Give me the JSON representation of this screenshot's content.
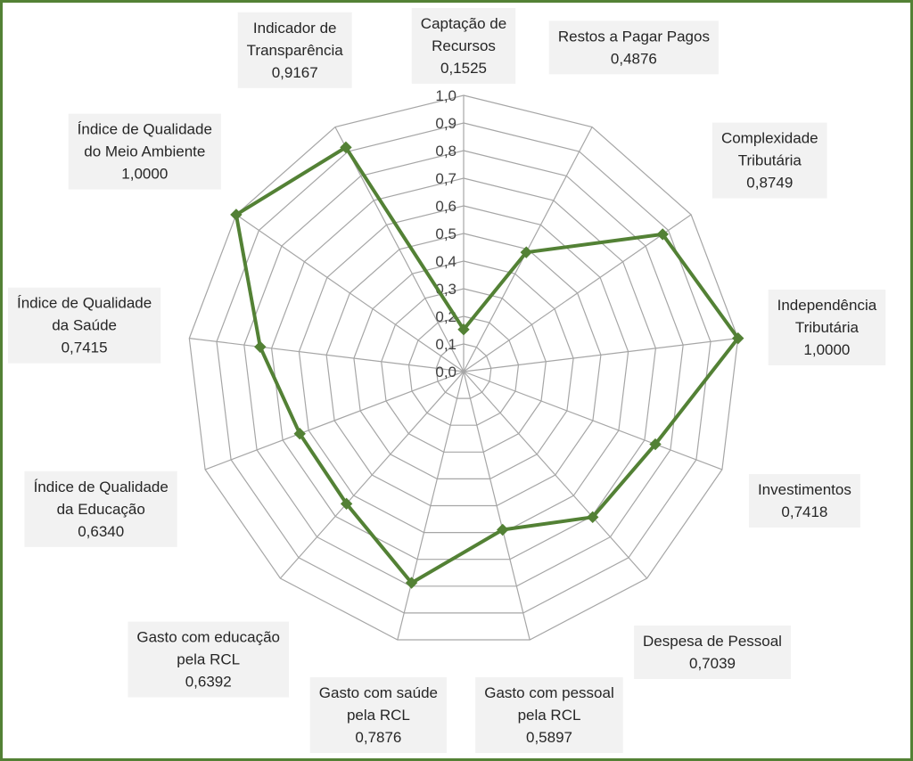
{
  "chart_data": {
    "type": "radar",
    "categories": [
      {
        "lines": [
          "Captação de",
          "Recursos"
        ],
        "value_label": "0,1525"
      },
      {
        "lines": [
          "Restos a Pagar Pagos"
        ],
        "value_label": "0,4876"
      },
      {
        "lines": [
          "Complexidade",
          "Tributária"
        ],
        "value_label": "0,8749"
      },
      {
        "lines": [
          "Independência",
          "Tributária"
        ],
        "value_label": "1,0000"
      },
      {
        "lines": [
          "Investimentos"
        ],
        "value_label": "0,7418"
      },
      {
        "lines": [
          "Despesa de Pessoal"
        ],
        "value_label": "0,7039"
      },
      {
        "lines": [
          "Gasto com pessoal",
          "pela RCL"
        ],
        "value_label": "0,5897"
      },
      {
        "lines": [
          "Gasto com saúde",
          "pela RCL"
        ],
        "value_label": "0,7876"
      },
      {
        "lines": [
          "Gasto com educação",
          "pela RCL"
        ],
        "value_label": "0,6392"
      },
      {
        "lines": [
          "Índice de Qualidade",
          "da Educação"
        ],
        "value_label": "0,6340"
      },
      {
        "lines": [
          "Índice de Qualidade",
          "da Saúde"
        ],
        "value_label": "0,7415"
      },
      {
        "lines": [
          "Índice de Qualidade",
          "do Meio Ambiente"
        ],
        "value_label": "1,0000"
      },
      {
        "lines": [
          "Indicador de",
          "Transparência"
        ],
        "value_label": "0,9167"
      }
    ],
    "values": [
      0.1525,
      0.4876,
      0.8749,
      1.0,
      0.7418,
      0.7039,
      0.5897,
      0.7876,
      0.6392,
      0.634,
      0.7415,
      1.0,
      0.9167
    ],
    "rlim": [
      0,
      1
    ],
    "r_ticks": [
      "0,0",
      "0,1",
      "0,2",
      "0,3",
      "0,4",
      "0,5",
      "0,6",
      "0,7",
      "0,8",
      "0,9",
      "1,0"
    ],
    "grid": true,
    "colors": {
      "series": "#538135",
      "grid": "#a6a6a6",
      "label_box": "#f2f2f2",
      "frame": "#538135"
    }
  }
}
